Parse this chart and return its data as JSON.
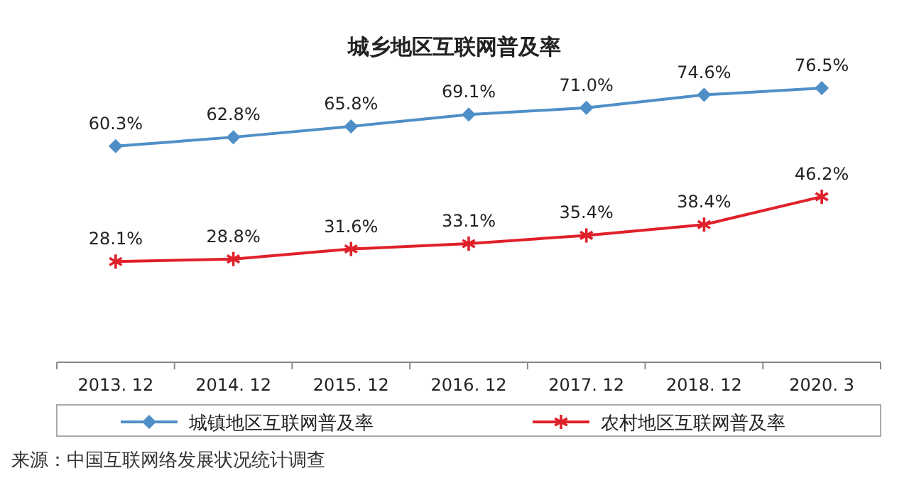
{
  "chart_data": {
    "type": "line",
    "title": "城乡地区互联网普及率",
    "categories": [
      "2013. 12",
      "2014. 12",
      "2015. 12",
      "2016. 12",
      "2017. 12",
      "2018. 12",
      "2020. 3"
    ],
    "series": [
      {
        "name": "城镇地区互联网普及率",
        "color": "#4f8fc7",
        "marker": "diamond",
        "values": [
          60.3,
          62.8,
          65.8,
          69.1,
          71.0,
          74.6,
          76.5
        ],
        "value_labels": [
          "60.3%",
          "62.8%",
          "65.8%",
          "69.1%",
          "71.0%",
          "74.6%",
          "76.5%"
        ]
      },
      {
        "name": "农村地区互联网普及率",
        "color": "#e0202a",
        "marker": "cross",
        "values": [
          28.1,
          28.8,
          31.6,
          33.1,
          35.4,
          38.4,
          46.2
        ],
        "value_labels": [
          "28.1%",
          "28.8%",
          "31.6%",
          "33.1%",
          "35.4%",
          "38.4%",
          "46.2%"
        ]
      }
    ],
    "legend": "bottom",
    "grid": false,
    "annotations": [
      "来源：中国互联网络发展状况统计调查"
    ]
  }
}
